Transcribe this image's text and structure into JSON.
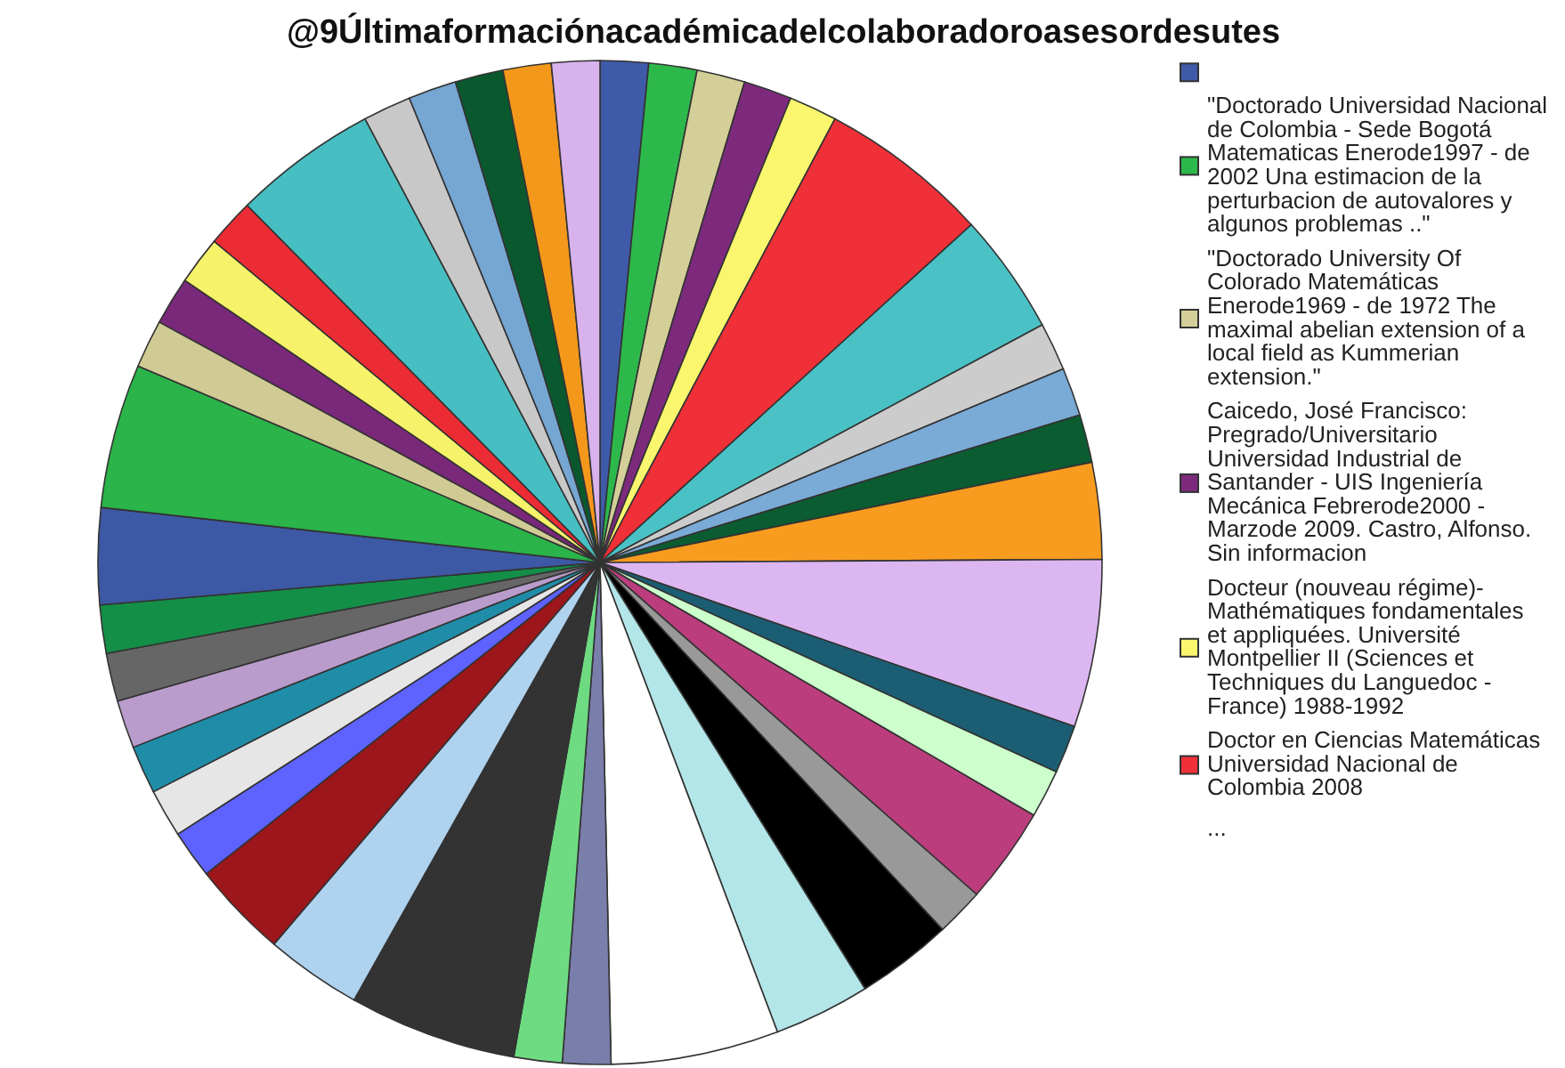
{
  "chart_data": {
    "type": "pie",
    "title": "@9Últimaformaciónacadémicadelcolaboradoroasesordesutes",
    "categories": [
      null,
      "\"Doctorado Universidad Nacional de Colombia - Sede Bogotá Matematicas Enerode1997 - de 2002 Una estimacion de la perturbacion de autovalores y algunos problemas ..\"",
      "\"Doctorado University Of Colorado Matemáticas Enerode1969 - de 1972 The maximal abelian extension of a local field as Kummerian extension.\"",
      "Caicedo, José Francisco: Pregrado/Universitario Universidad Industrial de Santander - UIS Ingeniería Mecánica Febrerode2000 - Marzode 2009. Castro, Alfonso. Sin informacion",
      "Docteur (nouveau régime)- Mathématiques fondamentales et appliquées. Université Montpellier II (Sciences et Techniques du Languedoc - France) 1988-1992",
      "Doctor en Ciencias Matemáticas Universidad Nacional de Colombia 2008",
      null,
      null,
      null,
      null,
      null,
      null,
      null,
      null,
      null,
      null,
      null,
      null,
      null,
      null,
      null,
      null,
      null,
      null,
      null,
      null,
      null,
      null,
      null,
      null,
      null,
      null,
      null,
      null,
      null,
      null,
      null,
      null,
      null,
      null,
      null,
      null
    ],
    "values": [
      1.55,
      1.55,
      1.55,
      1.55,
      1.55,
      5.5,
      3.9,
      1.55,
      1.55,
      1.55,
      3.1,
      5.4,
      1.55,
      1.55,
      3.1,
      1.55,
      3.1,
      3.1,
      5.4,
      1.55,
      1.55,
      5.4,
      3.1,
      3.1,
      1.55,
      1.55,
      1.55,
      1.55,
      1.55,
      1.55,
      3.1,
      4.65,
      1.55,
      1.55,
      1.55,
      1.55,
      4.65,
      1.55,
      1.55,
      1.55,
      1.55,
      1.55
    ],
    "colors": [
      "#3f5aa8",
      "#2db84b",
      "#d4cf98",
      "#7d2a7d",
      "#faf66e",
      "#ef3038",
      "#4ac2c5",
      "#cccccc",
      "#7aaad6",
      "#0b5c31",
      "#f89c20",
      "#dcb6f0",
      "#1b5e73",
      "#ccffcc",
      "#bb3d7d",
      "#999999",
      "#000000",
      "#b3e6e8",
      "#ffffff",
      "#7a7eab",
      "#6edb82",
      "#333333",
      "#afd2ee",
      "#9c161b",
      "#5e62ff",
      "#e6e6e6",
      "#208da8",
      "#b99ccc",
      "#666666",
      "#138f47",
      "#3d58a4",
      "#2ab449",
      "#d0cb94",
      "#7a287a",
      "#f6f26a",
      "#eb2c34",
      "#47bec1",
      "#c8c8c8",
      "#76a6d2",
      "#0a582e",
      "#f4981c",
      "#d8b2ec"
    ],
    "legend": "right",
    "annotations": [
      "..."
    ]
  }
}
